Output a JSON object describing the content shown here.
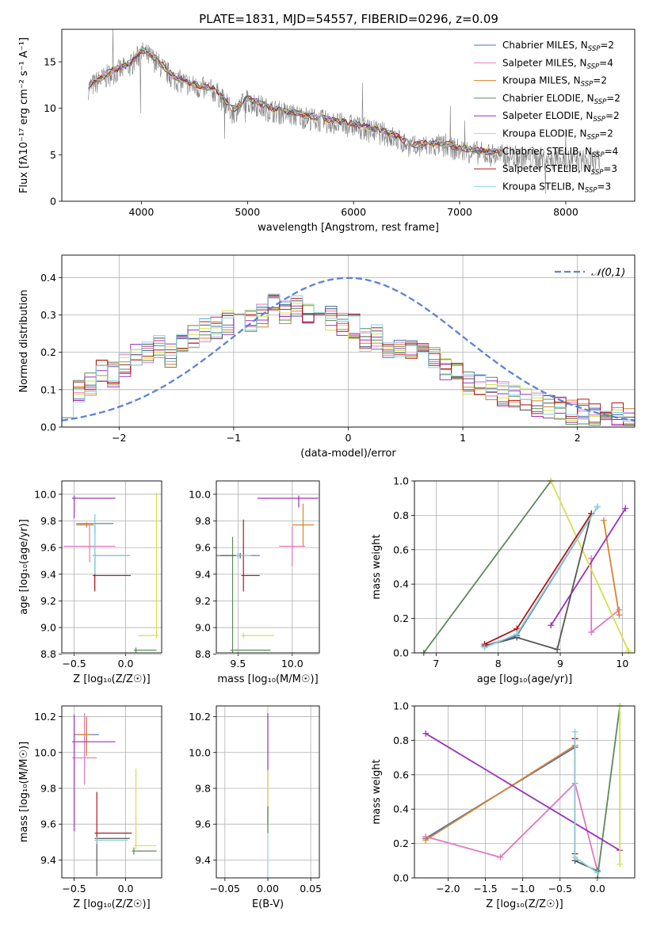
{
  "title": "PLATE=1831, MJD=54557, FIBERID=0296, z=0.09",
  "model_colors": [
    "#4c72b0",
    "#e377c2",
    "#d9822b",
    "#5b8a5b",
    "#9b30b9",
    "#d4e04b",
    "#555555",
    "#b01818",
    "#8dd3e0"
  ],
  "legend_models": [
    {
      "name": "Chabrier MILES",
      "nssp": "2"
    },
    {
      "name": "Salpeter MILES",
      "nssp": "4"
    },
    {
      "name": "Kroupa MILES",
      "nssp": "2"
    },
    {
      "name": "Chabrier ELODIE",
      "nssp": "2"
    },
    {
      "name": "Salpeter ELODIE",
      "nssp": "2"
    },
    {
      "name": "Kroupa ELODIE",
      "nssp": "2"
    },
    {
      "name": "Chabrier STELIB",
      "nssp": "4"
    },
    {
      "name": "Salpeter STELIB",
      "nssp": "3"
    },
    {
      "name": "Kroupa STELIB",
      "nssp": "3"
    }
  ],
  "chart_data": [
    {
      "id": "spectrum",
      "type": "line",
      "xlabel": "wavelength [Angstrom, rest frame]",
      "ylabel": "Flux [fλ10⁻¹⁷ erg cm⁻² s⁻¹ A⁻¹]",
      "xlim": [
        3250,
        8650
      ],
      "ylim": [
        0,
        18.5
      ],
      "xticks": [
        4000,
        5000,
        6000,
        7000,
        8000
      ],
      "yticks": [
        0,
        5,
        10,
        15
      ],
      "grid": false,
      "legend": "top-right",
      "data_color": "#808080",
      "data_anchor_x": [
        3500,
        3700,
        3900,
        4000,
        4100,
        4300,
        4500,
        4700,
        4862,
        5000,
        5200,
        5500,
        5800,
        6000,
        6300,
        6563,
        6800,
        7000,
        7300,
        7600,
        8000,
        8300
      ],
      "data_anchor_y": [
        12.2,
        13.6,
        14.6,
        16.0,
        15.4,
        13.2,
        12.3,
        11.8,
        9.5,
        10.8,
        9.8,
        9.1,
        8.4,
        8.1,
        7.2,
        5.8,
        6.0,
        5.5,
        5.0,
        4.7,
        4.4,
        4.3
      ]
    },
    {
      "id": "residuals",
      "type": "histogram",
      "xlabel": "(data-model)/error",
      "ylabel": "Normed distribution",
      "xlim": [
        -2.5,
        2.5
      ],
      "ylim": [
        0,
        0.46
      ],
      "xticks": [
        -2,
        -1,
        0,
        1,
        2
      ],
      "yticks": [
        0.0,
        0.1,
        0.2,
        0.3,
        0.4
      ],
      "grid": true,
      "legend": "top-right",
      "reference_label": "𝒩(0,1)",
      "reference_color": "#5b84d6",
      "bins": 50,
      "base_profile": [
        0.06,
        0.09,
        0.12,
        0.15,
        0.14,
        0.17,
        0.19,
        0.2,
        0.21,
        0.19,
        0.22,
        0.24,
        0.26,
        0.27,
        0.28,
        0.3,
        0.29,
        0.3,
        0.33,
        0.31,
        0.32,
        0.31,
        0.3,
        0.29,
        0.28,
        0.27,
        0.23,
        0.24,
        0.22,
        0.21,
        0.2,
        0.19,
        0.18,
        0.16,
        0.14,
        0.12,
        0.11,
        0.1,
        0.09,
        0.08,
        0.07,
        0.06,
        0.05,
        0.05,
        0.04,
        0.04,
        0.03,
        0.03,
        0.03,
        0.02
      ]
    },
    {
      "id": "z-age",
      "type": "errorbar",
      "xlabel": "Z [log₁₀(Z/Z☉)]",
      "ylabel": "age  [log₁₀(age/yr)]",
      "xlim": [
        -0.62,
        0.35
      ],
      "ylim": [
        8.81,
        10.1
      ],
      "xticks": [
        -0.5,
        0.0
      ],
      "xticklabels": [
        "−0.5",
        "0.0"
      ],
      "yticks": [
        8.8,
        9.0,
        9.2,
        9.4,
        9.6,
        9.8,
        10.0
      ],
      "grid": true,
      "points": [
        {
          "m": 0,
          "x": -0.3,
          "y": 9.78,
          "xl": 0.18,
          "xh": 0.18,
          "yl": 0.08,
          "yh": 0.07
        },
        {
          "m": 1,
          "x": -0.35,
          "y": 9.61,
          "xl": 0.25,
          "xh": 0.25,
          "yl": 0.12,
          "yh": 0.16
        },
        {
          "m": 2,
          "x": -0.38,
          "y": 9.77,
          "xl": 0.1,
          "xh": 0.07,
          "yl": 0.02,
          "yh": 0.02
        },
        {
          "m": 3,
          "x": 0.1,
          "y": 8.83,
          "xl": 0.02,
          "xh": 0.2,
          "yl": 0.02,
          "yh": 0.02
        },
        {
          "m": 4,
          "x": -0.5,
          "y": 9.97,
          "xl": 0.02,
          "xh": 0.4,
          "yl": 0.15,
          "yh": 0.02
        },
        {
          "m": 5,
          "x": 0.3,
          "y": 8.94,
          "xl": 0.18,
          "xh": 0.02,
          "yl": 0.02,
          "yh": 1.07
        },
        {
          "m": 6,
          "x": -0.3,
          "y": 9.54,
          "xl": 0.02,
          "xh": 0.34,
          "yl": 0.27,
          "yh": 0.02
        },
        {
          "m": 7,
          "x": -0.3,
          "y": 9.39,
          "xl": 0.02,
          "xh": 0.35,
          "yl": 0.11,
          "yh": 0.38
        },
        {
          "m": 8,
          "x": -0.3,
          "y": 9.54,
          "xl": 0.02,
          "xh": 0.34,
          "yl": 0.14,
          "yh": 0.31
        }
      ]
    },
    {
      "id": "mass-age",
      "type": "errorbar",
      "xlabel": "mass [log₁₀(M/M☉)]",
      "ylabel": "",
      "xlim": [
        9.3,
        10.25
      ],
      "ylim": [
        8.81,
        10.1
      ],
      "xticks": [
        9.5,
        10.0
      ],
      "xticklabels": [
        "9.5",
        "10.0"
      ],
      "yticks": [
        8.8,
        9.0,
        9.2,
        9.4,
        9.6,
        9.8,
        10.0
      ],
      "grid": true,
      "points": [
        {
          "m": 0,
          "x": 9.5,
          "y": 9.54,
          "xl": 0.2,
          "xh": 0.2,
          "yl": 0.02,
          "yh": 0.02
        },
        {
          "m": 1,
          "x": 10.0,
          "y": 9.61,
          "xl": 0.12,
          "xh": 0.12,
          "yl": 0.15,
          "yh": 0.15
        },
        {
          "m": 2,
          "x": 10.1,
          "y": 9.77,
          "xl": 0.1,
          "xh": 0.1,
          "yl": 0.16,
          "yh": 0.16
        },
        {
          "m": 3,
          "x": 9.45,
          "y": 8.83,
          "xl": 0.02,
          "xh": 0.35,
          "yl": 0.02,
          "yh": 0.85
        },
        {
          "m": 4,
          "x": 10.06,
          "y": 9.97,
          "xl": 0.38,
          "xh": 0.18,
          "yl": 0.07,
          "yh": 0.02
        },
        {
          "m": 5,
          "x": 9.55,
          "y": 8.94,
          "xl": 0.02,
          "xh": 0.28,
          "yl": 0.02,
          "yh": 0.02
        },
        {
          "m": 6,
          "x": 9.52,
          "y": 9.54,
          "xl": 0.18,
          "xh": 0.02,
          "yl": 0.02,
          "yh": 0.02
        },
        {
          "m": 7,
          "x": 9.55,
          "y": 9.39,
          "xl": 0.02,
          "xh": 0.15,
          "yl": 0.12,
          "yh": 0.42
        },
        {
          "m": 8,
          "x": 9.5,
          "y": 9.54,
          "xl": 0.02,
          "xh": 0.12,
          "yl": 0.02,
          "yh": 0.02
        }
      ]
    },
    {
      "id": "age-weight",
      "type": "line",
      "xlabel": "age  [log₁₀(age/yr)]",
      "ylabel": "mass weight",
      "xlim": [
        6.65,
        10.2
      ],
      "ylim": [
        0,
        1.0
      ],
      "xticks": [
        7,
        8,
        9,
        10
      ],
      "yticks": [
        0.0,
        0.2,
        0.4,
        0.6,
        0.8,
        1.0
      ],
      "grid": true,
      "series": [
        {
          "m": 0,
          "x": [
            7.78,
            8.3,
            9.6
          ],
          "y": [
            0.04,
            0.1,
            0.85
          ]
        },
        {
          "m": 1,
          "x": [
            9.5,
            9.5,
            9.95
          ],
          "y": [
            0.55,
            0.12,
            0.25
          ]
        },
        {
          "m": 2,
          "x": [
            9.7,
            9.95
          ],
          "y": [
            0.77,
            0.22
          ]
        },
        {
          "m": 3,
          "x": [
            6.8,
            8.85
          ],
          "y": [
            0.0,
            1.0
          ]
        },
        {
          "m": 4,
          "x": [
            8.85,
            10.05
          ],
          "y": [
            0.16,
            0.84
          ]
        },
        {
          "m": 5,
          "x": [
            8.85,
            10.1
          ],
          "y": [
            1.0,
            0.01
          ]
        },
        {
          "m": 6,
          "x": [
            7.78,
            8.3,
            8.95,
            9.5
          ],
          "y": [
            0.04,
            0.09,
            0.02,
            0.81
          ]
        },
        {
          "m": 7,
          "x": [
            7.78,
            8.3,
            9.5
          ],
          "y": [
            0.05,
            0.14,
            0.81
          ]
        },
        {
          "m": 8,
          "x": [
            7.78,
            8.3,
            9.6
          ],
          "y": [
            0.03,
            0.11,
            0.85
          ]
        }
      ]
    },
    {
      "id": "z-mass",
      "type": "errorbar",
      "xlabel": "Z [log₁₀(Z/Z☉)]",
      "ylabel": "mass [log₁₀(M/M☉)]",
      "xlim": [
        -0.62,
        0.35
      ],
      "ylim": [
        9.3,
        10.26
      ],
      "xticks": [
        -0.5,
        0.0
      ],
      "xticklabels": [
        "−0.5",
        "0.0"
      ],
      "yticks": [
        9.4,
        9.6,
        9.8,
        10.0,
        10.2
      ],
      "grid": true,
      "points": [
        {
          "m": 0,
          "x": -0.38,
          "y": 10.1,
          "xl": 0.12,
          "xh": 0.12,
          "yl": 0.1,
          "yh": 0.1
        },
        {
          "m": 1,
          "x": -0.4,
          "y": 9.97,
          "xl": 0.12,
          "xh": 0.12,
          "yl": 0.15,
          "yh": 0.25
        },
        {
          "m": 2,
          "x": -0.38,
          "y": 10.1,
          "xl": 0.1,
          "xh": 0.05,
          "yl": 0.12,
          "yh": 0.1
        },
        {
          "m": 3,
          "x": 0.08,
          "y": 9.45,
          "xl": 0.02,
          "xh": 0.22,
          "yl": 0.02,
          "yh": 0.02
        },
        {
          "m": 4,
          "x": -0.5,
          "y": 10.06,
          "xl": 0.02,
          "xh": 0.4,
          "yl": 0.5,
          "yh": 0.15
        },
        {
          "m": 5,
          "x": 0.1,
          "y": 9.48,
          "xl": 0.02,
          "xh": 0.2,
          "yl": 0.02,
          "yh": 0.43
        },
        {
          "m": 6,
          "x": -0.28,
          "y": 9.52,
          "xl": 0.02,
          "xh": 0.32,
          "yl": 0.21,
          "yh": 0.02
        },
        {
          "m": 7,
          "x": -0.28,
          "y": 9.55,
          "xl": 0.02,
          "xh": 0.34,
          "yl": 0.05,
          "yh": 0.23
        },
        {
          "m": 8,
          "x": -0.28,
          "y": 9.51,
          "xl": 0.02,
          "xh": 0.3,
          "yl": 0.02,
          "yh": 0.02
        }
      ]
    },
    {
      "id": "ebv-mass",
      "type": "errorbar",
      "xlabel": "E(B-V)",
      "ylabel": "",
      "xlim": [
        -0.06,
        0.06
      ],
      "ylim": [
        9.3,
        10.26
      ],
      "xticks": [
        -0.05,
        0.0,
        0.05
      ],
      "xticklabels": [
        "−0.05",
        "0.00",
        "0.05"
      ],
      "yticks": [
        9.4,
        9.6,
        9.8,
        10.0,
        10.2
      ],
      "grid": true,
      "points": [
        {
          "m": 4,
          "x": 0.0,
          "y": 9.75,
          "xl": 0.0,
          "xh": 0.0,
          "yl": 0.15,
          "yh": 0.47
        },
        {
          "m": 5,
          "x": 0.0,
          "y": 9.8,
          "xl": 0.0,
          "xh": 0.0,
          "yl": 0.15,
          "yh": 0.1
        },
        {
          "m": 8,
          "x": 0.0,
          "y": 9.5,
          "xl": 0.0,
          "xh": 0.0,
          "yl": 0.2,
          "yh": 0.2
        },
        {
          "m": 3,
          "x": 0.0,
          "y": 9.6,
          "xl": 0.0,
          "xh": 0.0,
          "yl": 0.05,
          "yh": 0.1
        }
      ]
    },
    {
      "id": "z-weight",
      "type": "line",
      "xlabel": "Z [log₁₀(Z/Z☉)]",
      "ylabel": "mass weight",
      "xlim": [
        -2.45,
        0.5
      ],
      "ylim": [
        0,
        1.0
      ],
      "xticks": [
        -2.0,
        -1.5,
        -1.0,
        -0.5,
        0.0
      ],
      "xticklabels": [
        "−2.0",
        "−1.5",
        "−1.0",
        "−0.5",
        "0.0"
      ],
      "yticks": [
        0.0,
        0.2,
        0.4,
        0.6,
        0.8,
        1.0
      ],
      "grid": true,
      "series": [
        {
          "m": 0,
          "x": [
            -2.3,
            -0.3
          ],
          "y": [
            0.23,
            0.76
          ]
        },
        {
          "m": 1,
          "x": [
            -2.3,
            -1.3,
            -0.3,
            0.0
          ],
          "y": [
            0.24,
            0.12,
            0.55,
            0.04
          ]
        },
        {
          "m": 2,
          "x": [
            -2.3,
            -0.3
          ],
          "y": [
            0.22,
            0.77
          ]
        },
        {
          "m": 3,
          "x": [
            0.0,
            0.3
          ],
          "y": [
            0.0,
            1.0
          ]
        },
        {
          "m": 4,
          "x": [
            -2.3,
            0.3
          ],
          "y": [
            0.84,
            0.16
          ]
        },
        {
          "m": 5,
          "x": [
            0.3,
            0.3
          ],
          "y": [
            1.0,
            0.08
          ]
        },
        {
          "m": 6,
          "x": [
            -0.3,
            -0.3,
            0.0
          ],
          "y": [
            0.81,
            0.1,
            0.04
          ]
        },
        {
          "m": 7,
          "x": [
            -0.3,
            -0.3
          ],
          "y": [
            0.81,
            0.14
          ]
        },
        {
          "m": 8,
          "x": [
            -0.3,
            -0.3,
            0.0
          ],
          "y": [
            0.85,
            0.12,
            0.03
          ]
        }
      ]
    }
  ]
}
